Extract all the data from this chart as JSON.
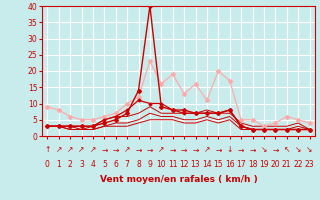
{
  "xlabel": "Vent moyen/en rafales ( km/h )",
  "background_color": "#c8ecec",
  "grid_color": "#ffffff",
  "xlim": [
    -0.5,
    23.5
  ],
  "ylim": [
    0,
    40
  ],
  "yticks": [
    0,
    5,
    10,
    15,
    20,
    25,
    30,
    35,
    40
  ],
  "xticks": [
    0,
    1,
    2,
    3,
    4,
    5,
    6,
    7,
    8,
    9,
    10,
    11,
    12,
    13,
    14,
    15,
    16,
    17,
    18,
    19,
    20,
    21,
    22,
    23
  ],
  "series": [
    {
      "x": [
        0,
        1,
        2,
        3,
        4,
        5,
        6,
        7,
        8,
        9,
        10,
        11,
        12,
        13,
        14,
        15,
        16,
        17,
        18,
        19,
        20,
        21,
        22,
        23
      ],
      "y": [
        9,
        8,
        6,
        5,
        5,
        6,
        7,
        10,
        12,
        23,
        16,
        19,
        13,
        16,
        11,
        20,
        17,
        5,
        5,
        3,
        4,
        6,
        5,
        4
      ],
      "color": "#ffaaaa",
      "linewidth": 0.9,
      "marker": "D",
      "markersize": 2.0,
      "zorder": 3
    },
    {
      "x": [
        0,
        1,
        2,
        3,
        4,
        5,
        6,
        7,
        8,
        9,
        10,
        11,
        12,
        13,
        14,
        15,
        16,
        17,
        18,
        19,
        20,
        21,
        22,
        23
      ],
      "y": [
        3,
        3,
        3,
        3,
        3,
        4,
        5,
        7,
        14,
        40,
        9,
        8,
        8,
        7,
        7,
        7,
        8,
        3,
        2,
        2,
        2,
        2,
        2,
        2
      ],
      "color": "#cc0000",
      "linewidth": 1.0,
      "marker": "D",
      "markersize": 2.0,
      "zorder": 5
    },
    {
      "x": [
        0,
        1,
        2,
        3,
        4,
        5,
        6,
        7,
        8,
        9,
        10,
        11,
        12,
        13,
        14,
        15,
        16,
        17,
        18,
        19,
        20,
        21,
        22,
        23
      ],
      "y": [
        3,
        3,
        3,
        3,
        3,
        5,
        6,
        8,
        11,
        10,
        10,
        8,
        7,
        7,
        7,
        7,
        8,
        3,
        2,
        2,
        2,
        2,
        2,
        2
      ],
      "color": "#cc0000",
      "linewidth": 0.9,
      "marker": "D",
      "markersize": 1.5,
      "zorder": 4
    },
    {
      "x": [
        0,
        1,
        2,
        3,
        4,
        5,
        6,
        7,
        8,
        9,
        10,
        11,
        12,
        13,
        14,
        15,
        16,
        17,
        18,
        19,
        20,
        21,
        22,
        23
      ],
      "y": [
        3,
        3,
        3,
        2,
        3,
        5,
        6,
        6,
        7,
        9,
        7,
        7,
        7,
        7,
        8,
        7,
        7,
        4,
        3,
        3,
        3,
        3,
        4,
        2
      ],
      "color": "#cc0000",
      "linewidth": 0.7,
      "marker": null,
      "markersize": 0,
      "zorder": 2
    },
    {
      "x": [
        0,
        1,
        2,
        3,
        4,
        5,
        6,
        7,
        8,
        9,
        10,
        11,
        12,
        13,
        14,
        15,
        16,
        17,
        18,
        19,
        20,
        21,
        22,
        23
      ],
      "y": [
        3,
        3,
        2,
        2,
        2,
        3,
        4,
        4,
        5,
        7,
        6,
        6,
        5,
        5,
        6,
        5,
        6,
        3,
        2,
        2,
        2,
        2,
        3,
        2
      ],
      "color": "#cc0000",
      "linewidth": 0.7,
      "marker": null,
      "markersize": 0,
      "zorder": 2
    },
    {
      "x": [
        0,
        1,
        2,
        3,
        4,
        5,
        6,
        7,
        8,
        9,
        10,
        11,
        12,
        13,
        14,
        15,
        16,
        17,
        18,
        19,
        20,
        21,
        22,
        23
      ],
      "y": [
        3,
        3,
        2,
        2,
        2,
        3,
        3,
        3,
        4,
        5,
        5,
        5,
        4,
        4,
        5,
        4,
        5,
        2,
        2,
        2,
        2,
        2,
        2,
        2
      ],
      "color": "#cc0000",
      "linewidth": 0.7,
      "marker": null,
      "markersize": 0,
      "zorder": 2
    }
  ],
  "wind_symbols": [
    "↑",
    "↗",
    "↗",
    "↗",
    "↗",
    "→",
    "→",
    "↗",
    "→",
    "→",
    "↗",
    "→",
    "→",
    "→",
    "↗",
    "→",
    "↓",
    "→",
    "→",
    "↘",
    "→",
    "↖",
    "↘",
    "↘"
  ],
  "line_color": "#cc0000",
  "tick_fontsize": 5.5,
  "xlabel_fontsize": 6.5
}
